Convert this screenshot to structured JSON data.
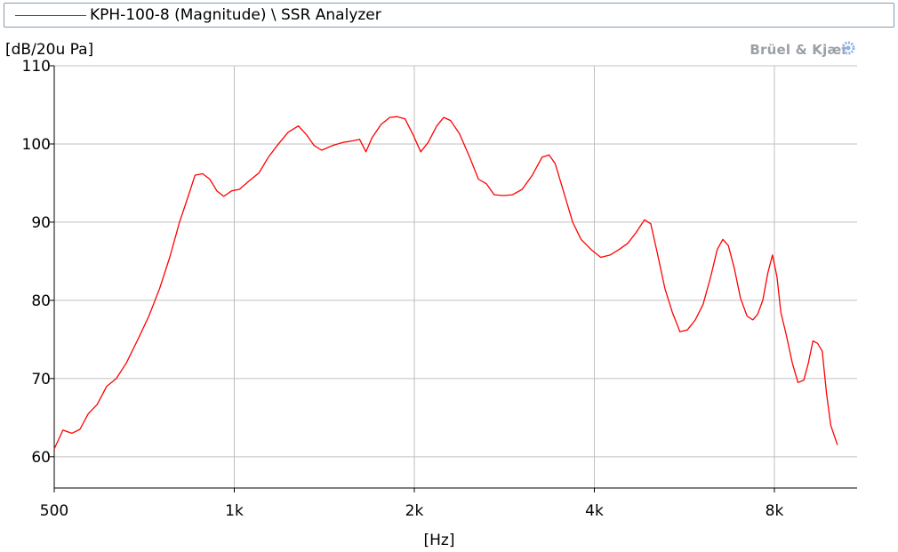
{
  "legend": {
    "label": "KPH-100-8 (Magnitude) \\ SSR Analyzer",
    "color": "#ff0000"
  },
  "unit_label": "[dB/20u Pa]",
  "brand": {
    "name": "Brüel & Kjær"
  },
  "chart_data": {
    "type": "line",
    "title": "",
    "xlabel": "[Hz]",
    "ylabel": "[dB/20u Pa]",
    "x_scale": "log",
    "xlim": [
      500,
      11000
    ],
    "ylim": [
      56,
      110
    ],
    "x_ticks": [
      {
        "value": 500,
        "label": "500"
      },
      {
        "value": 1000,
        "label": "1k"
      },
      {
        "value": 2000,
        "label": "2k"
      },
      {
        "value": 4000,
        "label": "4k"
      },
      {
        "value": 8000,
        "label": "8k"
      }
    ],
    "y_ticks": [
      {
        "value": 60,
        "label": "60"
      },
      {
        "value": 70,
        "label": "70"
      },
      {
        "value": 80,
        "label": "80"
      },
      {
        "value": 90,
        "label": "90"
      },
      {
        "value": 100,
        "label": "100"
      },
      {
        "value": 110,
        "label": "110"
      }
    ],
    "grid": true,
    "legend_position": "top",
    "series": [
      {
        "name": "KPH-100-8 (Magnitude) \\ SSR Analyzer",
        "color": "#ff0000",
        "points": [
          [
            500,
            61.0
          ],
          [
            517,
            63.4
          ],
          [
            535,
            63.0
          ],
          [
            552,
            63.5
          ],
          [
            570,
            65.5
          ],
          [
            590,
            66.7
          ],
          [
            612,
            69.0
          ],
          [
            635,
            70.0
          ],
          [
            660,
            72.0
          ],
          [
            690,
            75.0
          ],
          [
            720,
            78.0
          ],
          [
            750,
            81.5
          ],
          [
            780,
            85.5
          ],
          [
            810,
            90.0
          ],
          [
            835,
            93.0
          ],
          [
            860,
            96.0
          ],
          [
            885,
            96.2
          ],
          [
            910,
            95.5
          ],
          [
            935,
            94.0
          ],
          [
            960,
            93.3
          ],
          [
            990,
            94.0
          ],
          [
            1020,
            94.2
          ],
          [
            1060,
            95.3
          ],
          [
            1100,
            96.3
          ],
          [
            1140,
            98.3
          ],
          [
            1180,
            99.8
          ],
          [
            1230,
            101.5
          ],
          [
            1280,
            102.3
          ],
          [
            1320,
            101.2
          ],
          [
            1360,
            99.8
          ],
          [
            1400,
            99.2
          ],
          [
            1460,
            99.8
          ],
          [
            1520,
            100.2
          ],
          [
            1580,
            100.4
          ],
          [
            1620,
            100.6
          ],
          [
            1660,
            99.0
          ],
          [
            1700,
            100.8
          ],
          [
            1760,
            102.5
          ],
          [
            1820,
            103.4
          ],
          [
            1870,
            103.5
          ],
          [
            1930,
            103.2
          ],
          [
            1990,
            101.2
          ],
          [
            2050,
            99.0
          ],
          [
            2110,
            100.2
          ],
          [
            2180,
            102.3
          ],
          [
            2240,
            103.4
          ],
          [
            2300,
            103.0
          ],
          [
            2380,
            101.3
          ],
          [
            2470,
            98.5
          ],
          [
            2560,
            95.5
          ],
          [
            2640,
            94.9
          ],
          [
            2720,
            93.5
          ],
          [
            2820,
            93.4
          ],
          [
            2920,
            93.5
          ],
          [
            3030,
            94.2
          ],
          [
            3150,
            96.0
          ],
          [
            3270,
            98.3
          ],
          [
            3360,
            98.6
          ],
          [
            3440,
            97.5
          ],
          [
            3550,
            94.0
          ],
          [
            3680,
            90.0
          ],
          [
            3800,
            87.8
          ],
          [
            3950,
            86.5
          ],
          [
            4100,
            85.5
          ],
          [
            4250,
            85.8
          ],
          [
            4400,
            86.5
          ],
          [
            4550,
            87.3
          ],
          [
            4700,
            88.7
          ],
          [
            4850,
            90.3
          ],
          [
            4970,
            89.8
          ],
          [
            5100,
            86.0
          ],
          [
            5250,
            81.5
          ],
          [
            5400,
            78.5
          ],
          [
            5560,
            76.0
          ],
          [
            5720,
            76.2
          ],
          [
            5900,
            77.5
          ],
          [
            6080,
            79.5
          ],
          [
            6260,
            83.0
          ],
          [
            6420,
            86.5
          ],
          [
            6560,
            87.8
          ],
          [
            6700,
            87.0
          ],
          [
            6860,
            84.0
          ],
          [
            7020,
            80.3
          ],
          [
            7200,
            78.0
          ],
          [
            7360,
            77.5
          ],
          [
            7500,
            78.2
          ],
          [
            7650,
            80.0
          ],
          [
            7800,
            83.5
          ],
          [
            7940,
            85.8
          ],
          [
            8080,
            83.0
          ],
          [
            8200,
            78.5
          ],
          [
            8380,
            75.5
          ],
          [
            8570,
            72.0
          ],
          [
            8760,
            69.5
          ],
          [
            8960,
            69.8
          ],
          [
            9120,
            72.0
          ],
          [
            9280,
            74.8
          ],
          [
            9450,
            74.5
          ],
          [
            9620,
            73.5
          ],
          [
            9780,
            68.0
          ],
          [
            9940,
            64.0
          ],
          [
            10200,
            61.5
          ]
        ]
      }
    ]
  }
}
